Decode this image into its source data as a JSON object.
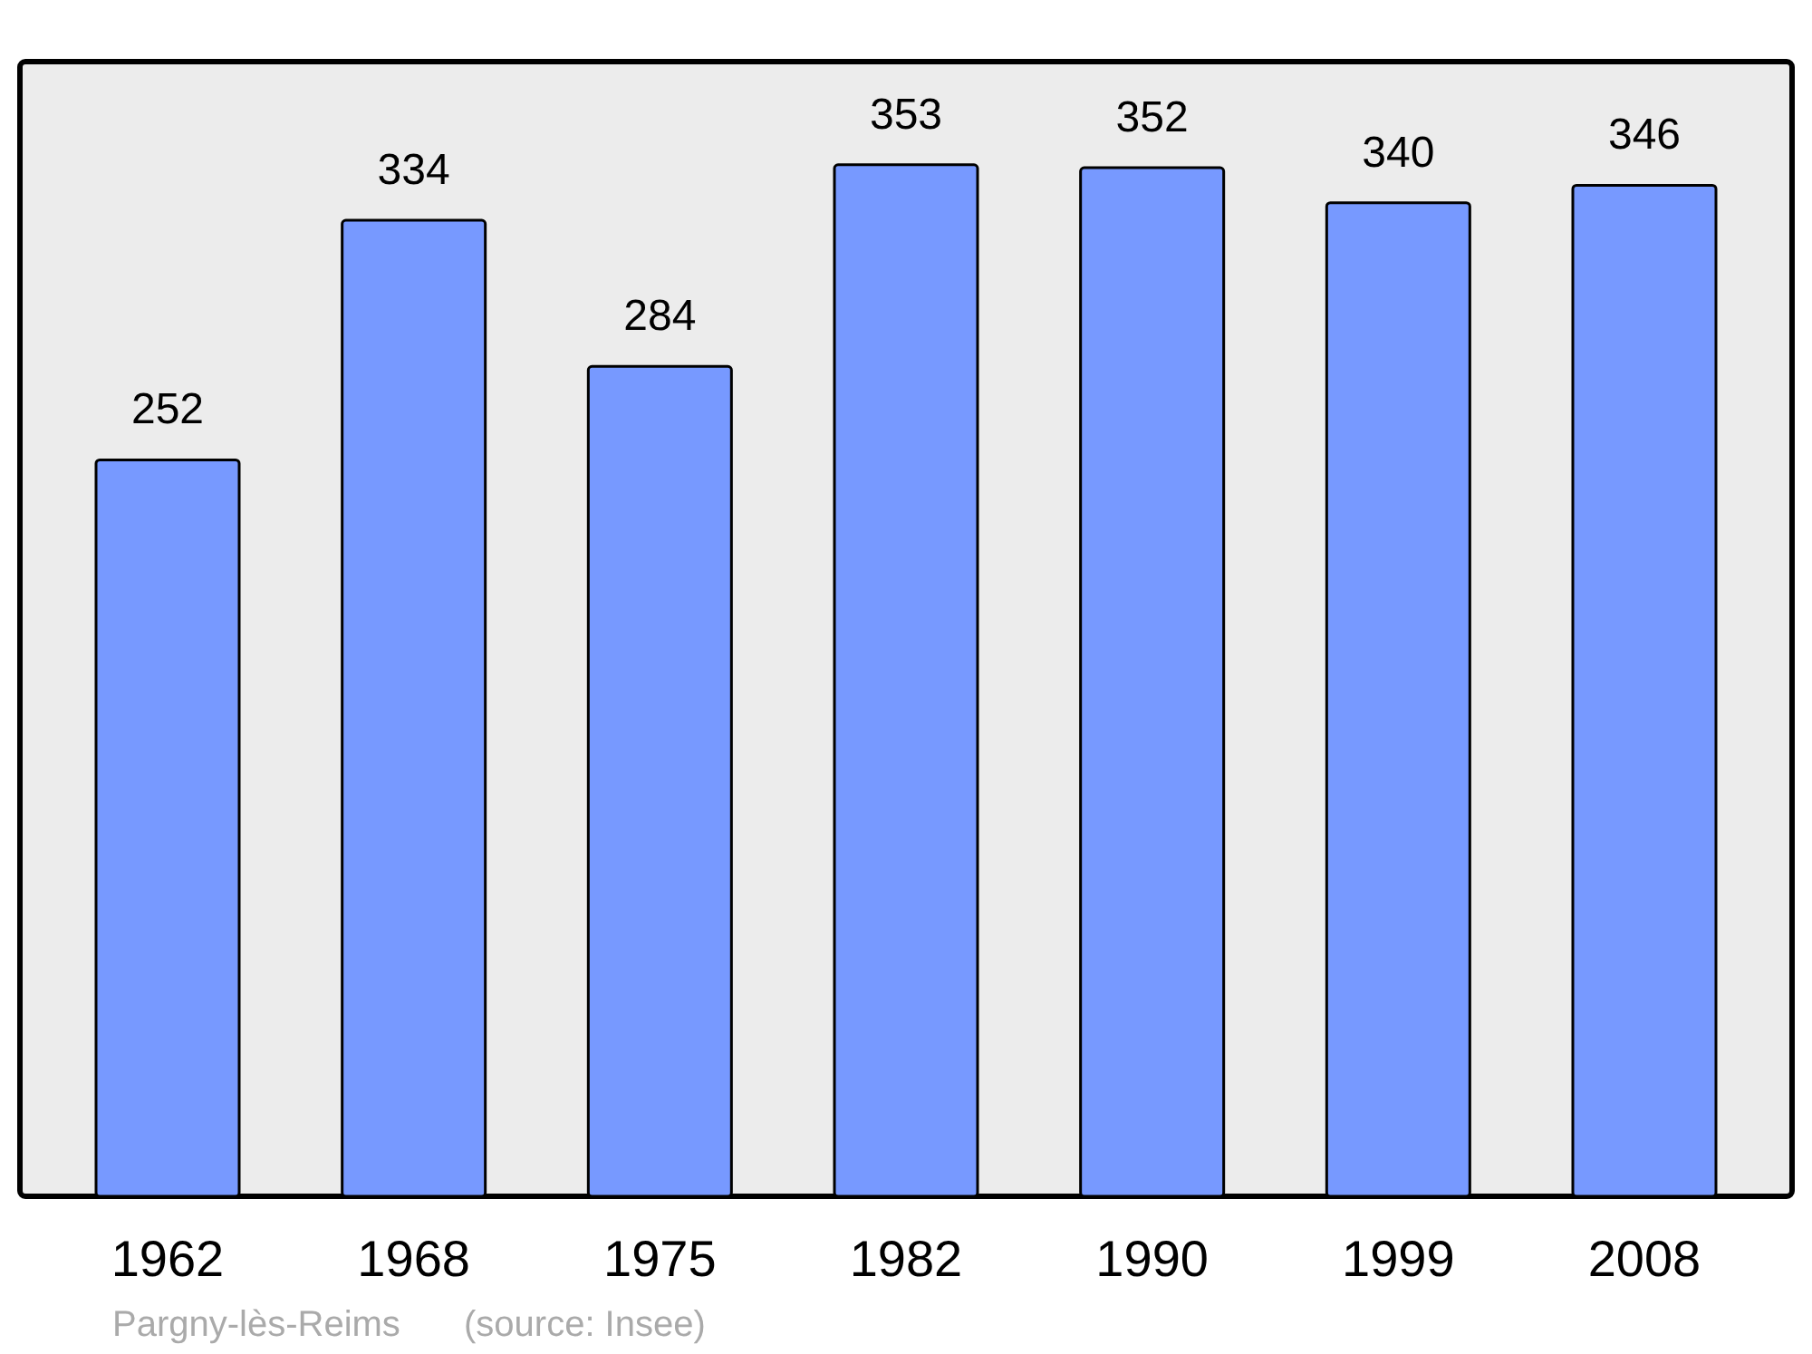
{
  "chart_data": {
    "type": "bar",
    "categories": [
      "1962",
      "1968",
      "1975",
      "1982",
      "1990",
      "1999",
      "2008"
    ],
    "values": [
      252,
      334,
      284,
      353,
      352,
      340,
      346
    ],
    "color": "#7799ff",
    "data_labels": true,
    "annotations": [
      "Pargny-lès-Reims",
      "(source: Insee)"
    ]
  }
}
